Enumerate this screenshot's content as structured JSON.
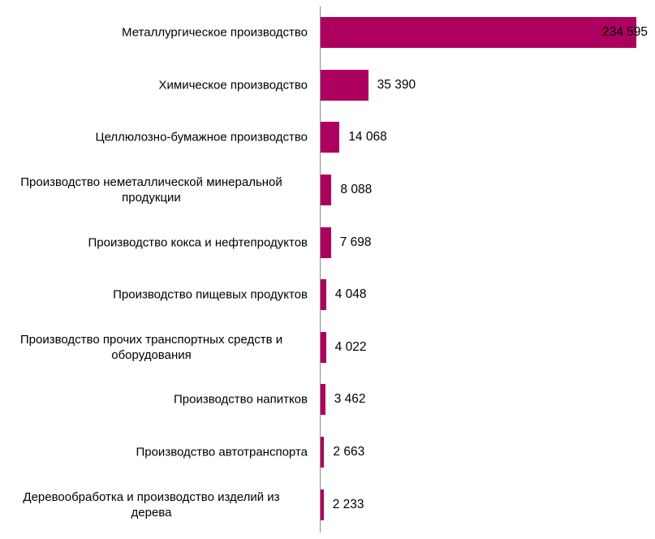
{
  "chart_data": {
    "type": "bar",
    "orientation": "horizontal",
    "title": "",
    "xlabel": "",
    "ylabel": "",
    "grid": false,
    "legend": null,
    "bar_color": "#ad005f",
    "categories": [
      "Металлургическое производство",
      "Химическое производство",
      "Целлюлозно-бумажное производство",
      "Производство неметаллической минеральной продукции",
      "Производство кокса и нефтепродуктов",
      "Производство пищевых продуктов",
      "Производство прочих транспортных средств и оборудования",
      "Производство напитков",
      "Производство автотранспорта",
      "Деревообработка и производство изделий из дерева"
    ],
    "values": [
      234595,
      35390,
      14068,
      8088,
      7698,
      4048,
      4022,
      3462,
      2663,
      2233
    ],
    "value_labels": [
      "234 595",
      "35 390",
      "14 068",
      "8 088",
      "7 698",
      "4 048",
      "4 022",
      "3 462",
      "2 663",
      "2 233"
    ],
    "xlim": [
      0,
      234595
    ]
  },
  "rows": [
    {
      "label_lines": [
        "Металлургическое производство"
      ],
      "label": "Металлургическое производство",
      "value_label": "234 595"
    },
    {
      "label_lines": [
        "Химическое производство"
      ],
      "label": "Химическое производство",
      "value_label": "35 390"
    },
    {
      "label_lines": [
        "Целлюлозно-бумажное производство"
      ],
      "label": "Целлюлозно-бумажное производство",
      "value_label": "14 068"
    },
    {
      "label_lines": [
        "Производство неметаллической минеральной",
        "продукции"
      ],
      "label": "Производство неметаллической минеральной продукции",
      "value_label": "8 088"
    },
    {
      "label_lines": [
        "Производство кокса и нефтепродуктов"
      ],
      "label": "Производство кокса и нефтепродуктов",
      "value_label": "7 698"
    },
    {
      "label_lines": [
        "Производство пищевых продуктов"
      ],
      "label": "Производство пищевых продуктов",
      "value_label": "4 048"
    },
    {
      "label_lines": [
        "Производство прочих транспортных средств и",
        "оборудования"
      ],
      "label": "Производство прочих транспортных средств и оборудования",
      "value_label": "4 022"
    },
    {
      "label_lines": [
        "Производство напитков"
      ],
      "label": "Производство напитков",
      "value_label": "3 462"
    },
    {
      "label_lines": [
        "Производство автотранспорта"
      ],
      "label": "Производство автотранспорта",
      "value_label": "2 663"
    },
    {
      "label_lines": [
        "Деревообработка и производство изделий из",
        "дерева"
      ],
      "label": "Деревообработка и производство изделий из дерева",
      "value_label": "2 233"
    }
  ]
}
